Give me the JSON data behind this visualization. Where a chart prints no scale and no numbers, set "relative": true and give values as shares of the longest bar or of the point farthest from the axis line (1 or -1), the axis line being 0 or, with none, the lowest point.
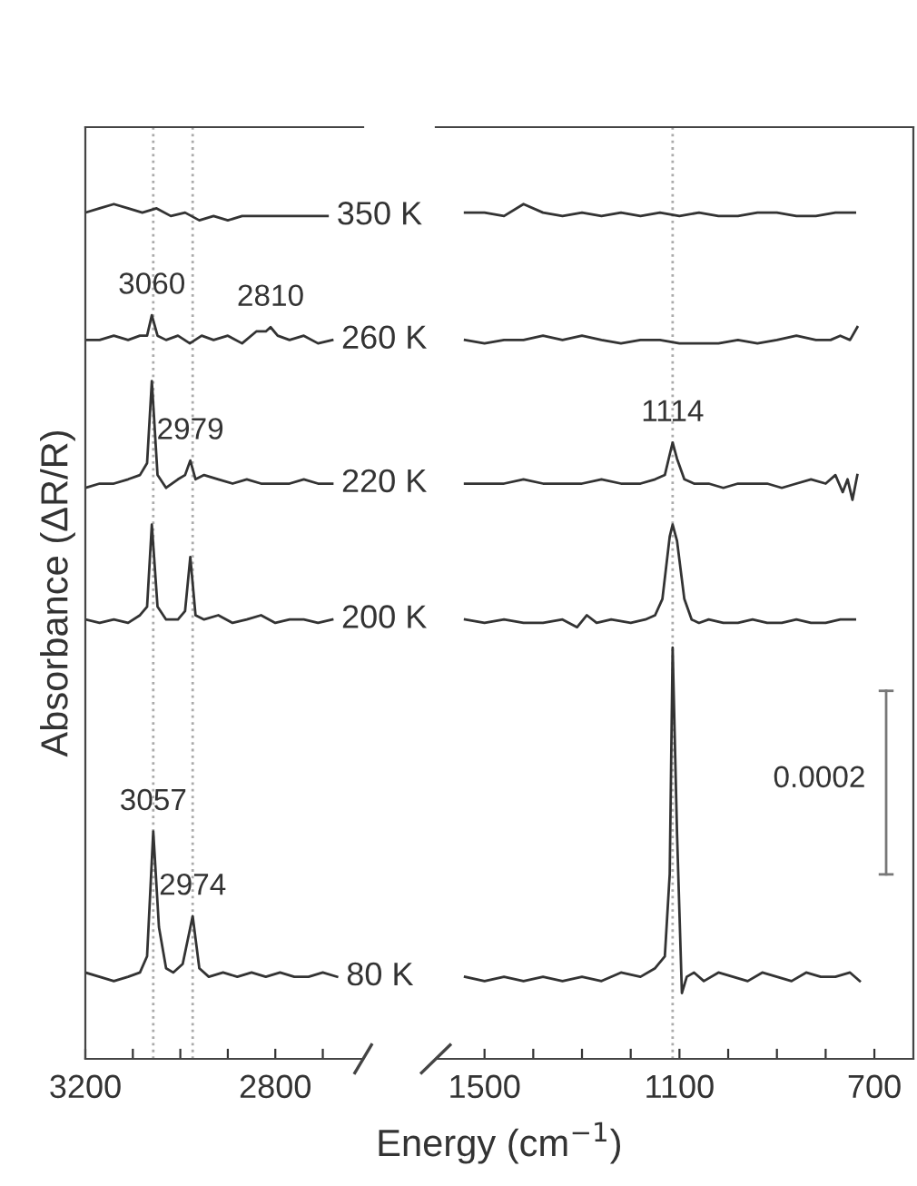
{
  "chart_data": [
    {
      "type": "line",
      "relative": true,
      "ylabel": "Absorbance (ΔR/R)",
      "xlabel": "Energy (cm$^{−1}$)",
      "xlim": [
        3200,
        2615
      ],
      "xticks": [
        3200,
        {
          "value": 3100,
          "label": null
        },
        {
          "value": 3000,
          "label": null
        },
        {
          "value": 2900,
          "label": null
        },
        2800,
        {
          "value": 2700,
          "label": null
        }
      ],
      "tick_labels": "x",
      "grid": false,
      "line_style": "solid",
      "marker": "none",
      "series": [
        {
          "name": "350 K",
          "color": "#333333",
          "x": [
            3200,
            3170,
            3140,
            3110,
            3080,
            3050,
            3020,
            2990,
            2960,
            2930,
            2900,
            2870,
            2840,
            2810,
            2780,
            2750,
            2720,
            2690
          ],
          "values": [
            0.99,
            0.995,
            1,
            0.995,
            0.99,
            0.995,
            0.986,
            0.99,
            0.981,
            0.986,
            0.981,
            0.986,
            0.986,
            0.986,
            0.986,
            0.986,
            0.986,
            0.986
          ]
        },
        {
          "name": "260 K",
          "color": "#333333",
          "x": [
            3200,
            3170,
            3140,
            3110,
            3085,
            3070,
            3060,
            3048,
            3030,
            3005,
            2980,
            2955,
            2930,
            2900,
            2870,
            2840,
            2820,
            2810,
            2795,
            2770,
            2740,
            2710,
            2680
          ],
          "values": [
            0.841,
            0.841,
            0.846,
            0.841,
            0.846,
            0.846,
            0.87,
            0.846,
            0.841,
            0.846,
            0.837,
            0.846,
            0.841,
            0.846,
            0.837,
            0.851,
            0.851,
            0.856,
            0.846,
            0.841,
            0.846,
            0.837,
            0.841
          ]
        },
        {
          "name": "220 K",
          "color": "#333333",
          "x": [
            3200,
            3170,
            3140,
            3110,
            3085,
            3070,
            3060,
            3048,
            3030,
            3005,
            2990,
            2979,
            2968,
            2950,
            2920,
            2890,
            2860,
            2830,
            2800,
            2770,
            2740,
            2710,
            2680
          ],
          "values": [
            0.668,
            0.673,
            0.673,
            0.678,
            0.683,
            0.697,
            0.793,
            0.683,
            0.668,
            0.678,
            0.683,
            0.7,
            0.678,
            0.683,
            0.678,
            0.673,
            0.678,
            0.673,
            0.673,
            0.673,
            0.678,
            0.673,
            0.673
          ]
        },
        {
          "name": "200 K",
          "color": "#333333",
          "x": [
            3200,
            3170,
            3140,
            3110,
            3085,
            3070,
            3060,
            3048,
            3030,
            3005,
            2990,
            2979,
            2968,
            2950,
            2920,
            2890,
            2860,
            2830,
            2800,
            2770,
            2740,
            2710,
            2680
          ],
          "values": [
            0.514,
            0.51,
            0.514,
            0.51,
            0.519,
            0.529,
            0.625,
            0.529,
            0.514,
            0.514,
            0.524,
            0.587,
            0.519,
            0.514,
            0.519,
            0.51,
            0.514,
            0.519,
            0.51,
            0.514,
            0.514,
            0.51,
            0.514
          ]
        },
        {
          "name": "80 K",
          "color": "#333333",
          "x": [
            3200,
            3170,
            3140,
            3110,
            3085,
            3070,
            3057,
            3045,
            3030,
            3015,
            2995,
            2974,
            2960,
            2940,
            2910,
            2880,
            2850,
            2820,
            2790,
            2760,
            2730,
            2700,
            2670
          ],
          "values": [
            0.101,
            0.096,
            0.091,
            0.096,
            0.101,
            0.12,
            0.266,
            0.154,
            0.106,
            0.101,
            0.111,
            0.167,
            0.106,
            0.096,
            0.101,
            0.096,
            0.101,
            0.096,
            0.101,
            0.096,
            0.096,
            0.101,
            0.096
          ]
        }
      ],
      "annotations": [
        {
          "text": "3060",
          "x": 3060,
          "y": 0.87
        },
        {
          "text": "2810",
          "x": 2810,
          "y": 0.856
        },
        {
          "text": "2979",
          "x": 2979,
          "y": 0.7
        },
        {
          "text": "3057",
          "x": 3057,
          "y": 0.266
        },
        {
          "text": "2974",
          "x": 2974,
          "y": 0.167
        }
      ],
      "ref_lines": [
        {
          "axis": "x",
          "value": 3057,
          "color": "#aaaaaa",
          "line_style": "dotted"
        },
        {
          "axis": "x",
          "value": 2974,
          "color": "#aaaaaa",
          "line_style": "dotted"
        }
      ]
    },
    {
      "type": "line",
      "relative": true,
      "xlim": [
        1600,
        620
      ],
      "xticks": [
        1500,
        {
          "value": 1400,
          "label": null
        },
        {
          "value": 1300,
          "label": null
        },
        {
          "value": 1200,
          "label": null
        },
        1100,
        {
          "value": 1000,
          "label": null
        },
        {
          "value": 900,
          "label": null
        },
        {
          "value": 800,
          "label": null
        },
        700
      ],
      "tick_labels": "x",
      "grid": false,
      "line_style": "solid",
      "marker": "none",
      "series": [
        {
          "color": "#333333",
          "x": [
            1540,
            1500,
            1460,
            1420,
            1380,
            1340,
            1300,
            1260,
            1220,
            1180,
            1140,
            1100,
            1060,
            1020,
            980,
            940,
            900,
            860,
            820,
            780,
            740
          ],
          "values": [
            0.99,
            0.99,
            0.986,
            1,
            0.99,
            0.986,
            0.99,
            0.986,
            0.99,
            0.986,
            0.99,
            0.986,
            0.99,
            0.986,
            0.986,
            0.99,
            0.99,
            0.986,
            0.986,
            0.99,
            0.99
          ]
        },
        {
          "color": "#333333",
          "x": [
            1540,
            1500,
            1460,
            1420,
            1380,
            1340,
            1300,
            1260,
            1220,
            1180,
            1140,
            1100,
            1060,
            1020,
            980,
            940,
            900,
            860,
            820,
            790,
            770,
            750,
            735
          ],
          "values": [
            0.841,
            0.837,
            0.841,
            0.841,
            0.846,
            0.841,
            0.846,
            0.841,
            0.837,
            0.841,
            0.841,
            0.837,
            0.837,
            0.837,
            0.841,
            0.837,
            0.841,
            0.846,
            0.841,
            0.841,
            0.846,
            0.841,
            0.856
          ]
        },
        {
          "color": "#333333",
          "x": [
            1540,
            1500,
            1460,
            1420,
            1380,
            1340,
            1300,
            1260,
            1220,
            1180,
            1150,
            1130,
            1120,
            1114,
            1105,
            1090,
            1070,
            1040,
            1010,
            980,
            950,
            920,
            890,
            860,
            830,
            800,
            780,
            765,
            755,
            745,
            735
          ],
          "values": [
            0.673,
            0.673,
            0.673,
            0.678,
            0.673,
            0.673,
            0.673,
            0.678,
            0.673,
            0.673,
            0.678,
            0.683,
            0.707,
            0.721,
            0.702,
            0.678,
            0.673,
            0.673,
            0.668,
            0.673,
            0.673,
            0.673,
            0.668,
            0.673,
            0.678,
            0.673,
            0.683,
            0.663,
            0.678,
            0.654,
            0.683
          ]
        },
        {
          "color": "#333333",
          "x": [
            1540,
            1500,
            1460,
            1420,
            1380,
            1340,
            1310,
            1290,
            1270,
            1240,
            1200,
            1170,
            1150,
            1135,
            1120,
            1114,
            1105,
            1090,
            1075,
            1060,
            1040,
            1010,
            980,
            950,
            920,
            890,
            860,
            830,
            800,
            770,
            740
          ],
          "values": [
            0.514,
            0.51,
            0.514,
            0.51,
            0.51,
            0.514,
            0.505,
            0.519,
            0.51,
            0.514,
            0.51,
            0.514,
            0.519,
            0.538,
            0.611,
            0.625,
            0.606,
            0.538,
            0.514,
            0.51,
            0.514,
            0.51,
            0.51,
            0.514,
            0.51,
            0.51,
            0.514,
            0.51,
            0.51,
            0.514,
            0.514
          ]
        },
        {
          "color": "#333333",
          "x": [
            1540,
            1500,
            1460,
            1420,
            1380,
            1340,
            1300,
            1260,
            1220,
            1180,
            1150,
            1130,
            1120,
            1114,
            1105,
            1095,
            1085,
            1070,
            1050,
            1020,
            990,
            960,
            930,
            900,
            870,
            840,
            810,
            780,
            750,
            730
          ],
          "values": [
            0.096,
            0.091,
            0.096,
            0.091,
            0.096,
            0.091,
            0.096,
            0.091,
            0.101,
            0.096,
            0.106,
            0.12,
            0.216,
            0.481,
            0.264,
            0.077,
            0.096,
            0.101,
            0.091,
            0.101,
            0.096,
            0.091,
            0.101,
            0.096,
            0.091,
            0.101,
            0.096,
            0.096,
            0.101,
            0.091
          ]
        }
      ],
      "annotations": [
        {
          "text": "1114",
          "x": 1114,
          "y": 0.721
        },
        "0.0002"
      ],
      "ref_lines": [
        {
          "axis": "x",
          "value": 1114,
          "color": "#aaaaaa",
          "line_style": "dotted"
        }
      ]
    }
  ]
}
